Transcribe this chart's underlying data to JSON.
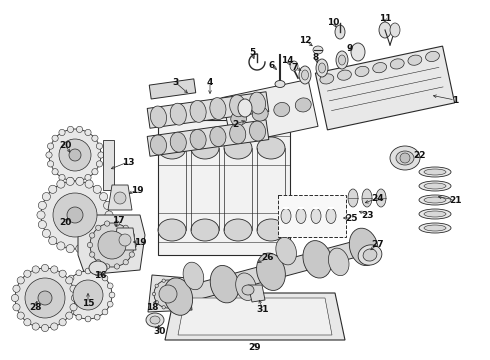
{
  "bg_color": "#ffffff",
  "line_color": "#2a2a2a",
  "label_color": "#111111",
  "fig_width": 4.9,
  "fig_height": 3.6,
  "dpi": 100
}
